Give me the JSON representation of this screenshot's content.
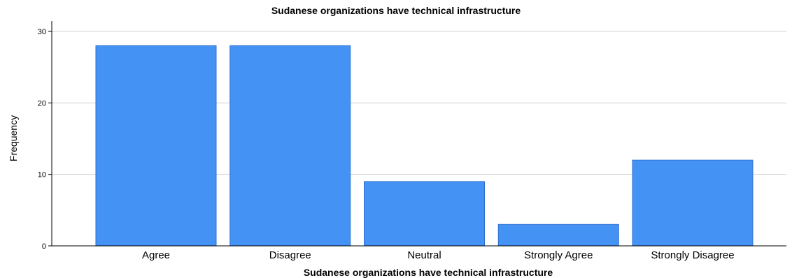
{
  "chart_data": {
    "type": "bar",
    "title": "Sudanese organizations have technical infrastructure",
    "xlabel": "Sudanese organizations have technical infrastructure",
    "ylabel": "Frequency",
    "categories": [
      "Agree",
      "Disagree",
      "Neutral",
      "Strongly Agree",
      "Strongly Disagree"
    ],
    "values": [
      28,
      28,
      9,
      3,
      12
    ],
    "ylim": [
      0,
      30
    ],
    "yticks": [
      0,
      10,
      20,
      30
    ],
    "grid": true,
    "bar_color": "#4592f5"
  }
}
